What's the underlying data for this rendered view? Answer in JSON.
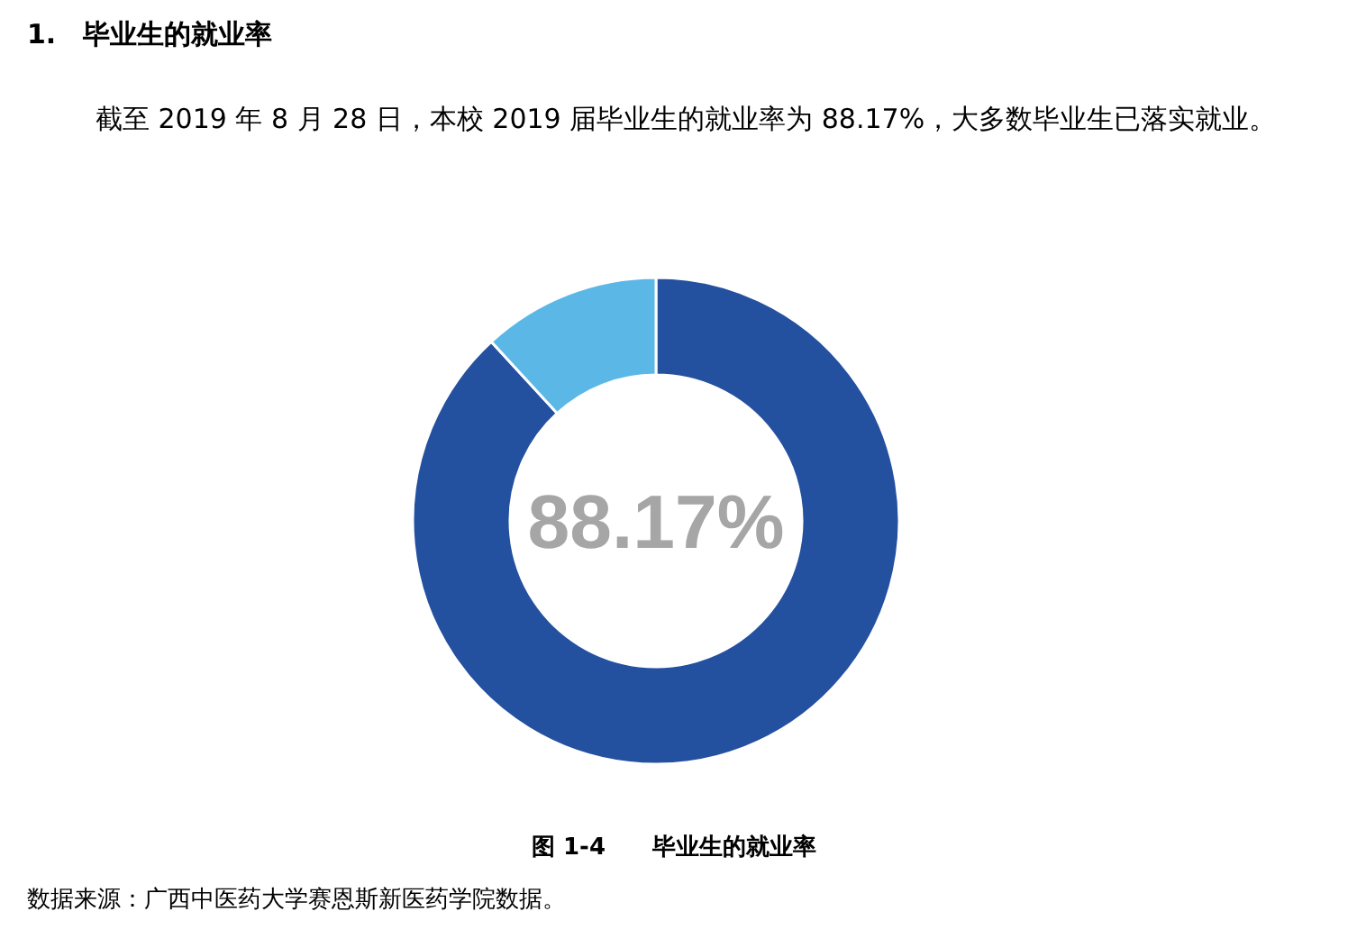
{
  "chart_data": {
    "type": "donut",
    "title": "1.　毕业生的就业率",
    "subtitle": "截至 2019 年 8 月 28 日，本校 2019 届毕业生的就业率为 88.17%，大多数毕业生已落实就业。",
    "categories": [
      null,
      null
    ],
    "values": [
      88.17,
      11.83
    ],
    "colors": [
      "#2450a0",
      "#5bb8e6"
    ],
    "value_labels": [
      "88.17%",
      null
    ],
    "annotations": [
      "图 1-4　　毕业生的就业率",
      "数据来源：广西中医药大学赛恩斯新医药学院数据。"
    ]
  }
}
